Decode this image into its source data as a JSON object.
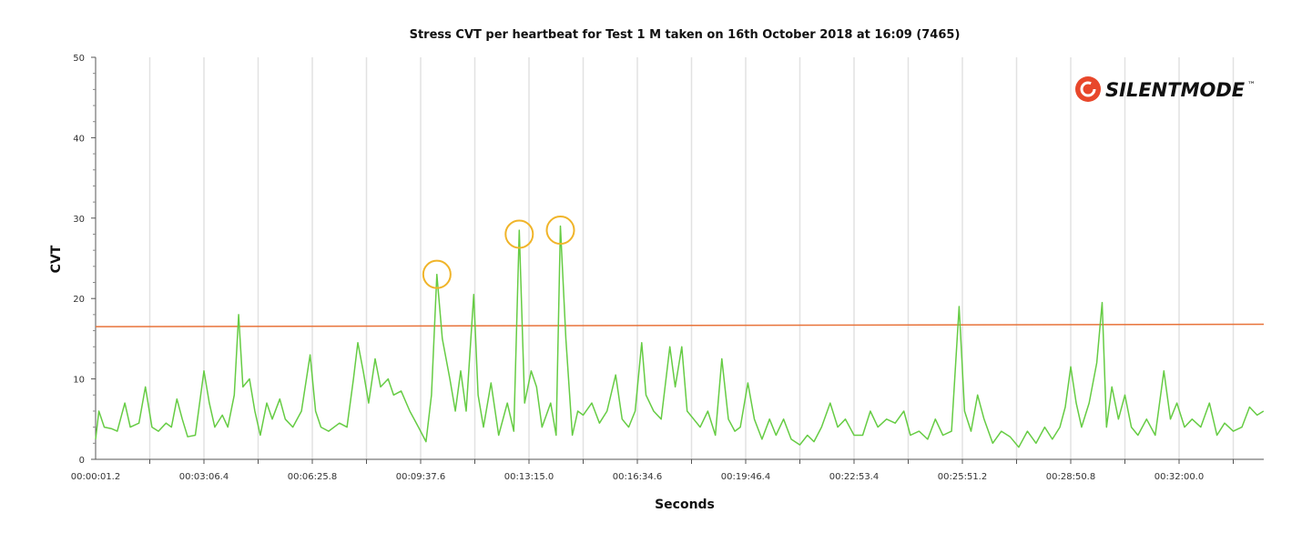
{
  "chart_data": {
    "type": "line",
    "title": "Stress CVT per heartbeat for Test 1 M taken on 16th October 2018 at 16:09 (7465)",
    "xlabel": "Seconds",
    "ylabel": "CVT",
    "ylim": [
      0,
      50
    ],
    "yticks": [
      "0",
      "10",
      "20",
      "30",
      "40",
      "50"
    ],
    "xlim_tick_units": [
      0,
      10.78
    ],
    "xtick_labels": [
      "00:00:01.2",
      "00:03:06.4",
      "00:06:25.8",
      "00:09:37.6",
      "00:13:15.0",
      "00:16:34.6",
      "00:19:46.4",
      "00:22:53.4",
      "00:25:51.2",
      "00:28:50.8",
      "00:32:00.0"
    ],
    "grid": "vertical",
    "legend": "none",
    "threshold": {
      "name": "threshold",
      "start": 16.5,
      "end": 16.8,
      "color": "#e8733a"
    },
    "series": [
      {
        "name": "CVT",
        "color": "#66cc44",
        "points": [
          [
            0,
            2.5
          ],
          [
            0.03,
            6
          ],
          [
            0.08,
            4
          ],
          [
            0.15,
            3.8
          ],
          [
            0.2,
            3.5
          ],
          [
            0.27,
            7
          ],
          [
            0.32,
            4
          ],
          [
            0.4,
            4.5
          ],
          [
            0.46,
            9
          ],
          [
            0.52,
            4
          ],
          [
            0.58,
            3.5
          ],
          [
            0.65,
            4.5
          ],
          [
            0.7,
            4
          ],
          [
            0.75,
            7.5
          ],
          [
            0.8,
            5
          ],
          [
            0.85,
            2.8
          ],
          [
            0.92,
            3
          ],
          [
            1.0,
            11
          ],
          [
            1.05,
            7
          ],
          [
            1.1,
            4
          ],
          [
            1.17,
            5.5
          ],
          [
            1.22,
            4
          ],
          [
            1.28,
            8
          ],
          [
            1.32,
            18
          ],
          [
            1.36,
            9
          ],
          [
            1.42,
            10
          ],
          [
            1.47,
            6
          ],
          [
            1.52,
            3
          ],
          [
            1.58,
            7
          ],
          [
            1.63,
            5
          ],
          [
            1.7,
            7.5
          ],
          [
            1.75,
            5
          ],
          [
            1.82,
            4
          ],
          [
            1.9,
            6
          ],
          [
            1.98,
            13
          ],
          [
            2.03,
            6
          ],
          [
            2.08,
            4
          ],
          [
            2.15,
            3.5
          ],
          [
            2.25,
            4.5
          ],
          [
            2.32,
            4
          ],
          [
            2.38,
            10
          ],
          [
            2.42,
            14.5
          ],
          [
            2.47,
            11
          ],
          [
            2.52,
            7
          ],
          [
            2.58,
            12.5
          ],
          [
            2.63,
            9
          ],
          [
            2.7,
            10
          ],
          [
            2.75,
            8
          ],
          [
            2.82,
            8.5
          ],
          [
            2.9,
            6
          ],
          [
            2.98,
            4
          ],
          [
            3.05,
            2.2
          ],
          [
            3.1,
            8
          ],
          [
            3.15,
            23
          ],
          [
            3.2,
            15
          ],
          [
            3.27,
            10
          ],
          [
            3.32,
            6
          ],
          [
            3.37,
            11
          ],
          [
            3.42,
            6
          ],
          [
            3.49,
            20.5
          ],
          [
            3.53,
            8
          ],
          [
            3.58,
            4
          ],
          [
            3.65,
            9.5
          ],
          [
            3.72,
            3
          ],
          [
            3.8,
            7
          ],
          [
            3.86,
            3.5
          ],
          [
            3.91,
            28.5
          ],
          [
            3.96,
            7
          ],
          [
            4.02,
            11
          ],
          [
            4.07,
            9
          ],
          [
            4.12,
            4
          ],
          [
            4.2,
            7
          ],
          [
            4.25,
            3
          ],
          [
            4.29,
            29
          ],
          [
            4.34,
            15
          ],
          [
            4.4,
            3
          ],
          [
            4.45,
            6
          ],
          [
            4.5,
            5.5
          ],
          [
            4.58,
            7
          ],
          [
            4.65,
            4.5
          ],
          [
            4.72,
            6
          ],
          [
            4.8,
            10.5
          ],
          [
            4.86,
            5
          ],
          [
            4.92,
            4
          ],
          [
            4.98,
            6
          ],
          [
            5.04,
            14.5
          ],
          [
            5.08,
            8
          ],
          [
            5.15,
            6
          ],
          [
            5.22,
            5
          ],
          [
            5.3,
            14
          ],
          [
            5.35,
            9
          ],
          [
            5.41,
            14
          ],
          [
            5.46,
            6
          ],
          [
            5.52,
            5
          ],
          [
            5.58,
            4
          ],
          [
            5.65,
            6
          ],
          [
            5.72,
            3
          ],
          [
            5.78,
            12.5
          ],
          [
            5.84,
            5
          ],
          [
            5.9,
            3.5
          ],
          [
            5.95,
            4
          ],
          [
            6.02,
            9.5
          ],
          [
            6.08,
            5
          ],
          [
            6.15,
            2.5
          ],
          [
            6.22,
            5
          ],
          [
            6.28,
            3
          ],
          [
            6.35,
            5
          ],
          [
            6.42,
            2.5
          ],
          [
            6.5,
            1.8
          ],
          [
            6.57,
            3
          ],
          [
            6.63,
            2.2
          ],
          [
            6.7,
            4
          ],
          [
            6.78,
            7
          ],
          [
            6.85,
            4
          ],
          [
            6.92,
            5
          ],
          [
            7.0,
            3
          ],
          [
            7.08,
            3
          ],
          [
            7.15,
            6
          ],
          [
            7.22,
            4
          ],
          [
            7.3,
            5
          ],
          [
            7.38,
            4.5
          ],
          [
            7.46,
            6
          ],
          [
            7.52,
            3
          ],
          [
            7.6,
            3.5
          ],
          [
            7.68,
            2.5
          ],
          [
            7.75,
            5
          ],
          [
            7.82,
            3
          ],
          [
            7.9,
            3.5
          ],
          [
            7.97,
            19
          ],
          [
            8.02,
            6
          ],
          [
            8.08,
            3.5
          ],
          [
            8.14,
            8
          ],
          [
            8.2,
            5
          ],
          [
            8.28,
            2
          ],
          [
            8.36,
            3.5
          ],
          [
            8.44,
            2.8
          ],
          [
            8.52,
            1.5
          ],
          [
            8.6,
            3.5
          ],
          [
            8.68,
            2
          ],
          [
            8.76,
            4
          ],
          [
            8.83,
            2.5
          ],
          [
            8.9,
            4
          ],
          [
            8.95,
            6.5
          ],
          [
            9.0,
            11.5
          ],
          [
            9.05,
            7
          ],
          [
            9.1,
            4
          ],
          [
            9.17,
            7
          ],
          [
            9.24,
            12
          ],
          [
            9.29,
            19.5
          ],
          [
            9.33,
            4
          ],
          [
            9.38,
            9
          ],
          [
            9.44,
            5
          ],
          [
            9.5,
            8
          ],
          [
            9.56,
            4
          ],
          [
            9.62,
            3
          ],
          [
            9.7,
            5
          ],
          [
            9.78,
            3
          ],
          [
            9.86,
            11
          ],
          [
            9.92,
            5
          ],
          [
            9.98,
            7
          ],
          [
            10.05,
            4
          ],
          [
            10.12,
            5
          ],
          [
            10.2,
            4
          ],
          [
            10.28,
            7
          ],
          [
            10.35,
            3
          ],
          [
            10.42,
            4.5
          ],
          [
            10.5,
            3.5
          ],
          [
            10.58,
            4
          ],
          [
            10.65,
            6.5
          ],
          [
            10.72,
            5.5
          ],
          [
            10.78,
            6
          ]
        ]
      }
    ],
    "annotations": [
      {
        "type": "circle",
        "x": 3.15,
        "y": 23,
        "color": "#f0b429"
      },
      {
        "type": "circle",
        "x": 3.91,
        "y": 28,
        "color": "#f0b429"
      },
      {
        "type": "circle",
        "x": 4.29,
        "y": 28.5,
        "color": "#f0b429"
      }
    ]
  },
  "logo": {
    "text": "SILENTMODE",
    "tm": "™",
    "color": "#e8472b"
  }
}
